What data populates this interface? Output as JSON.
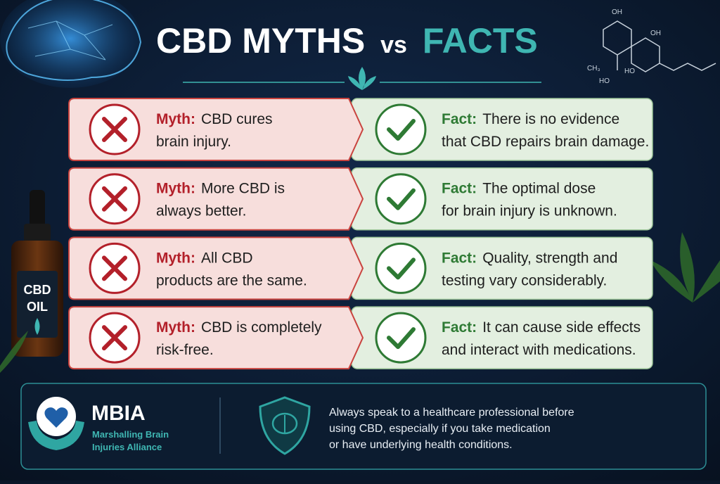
{
  "title": {
    "myths": "CBD MYTHS",
    "vs": "vs",
    "facts": "FACTS"
  },
  "molecule_labels": [
    "OH",
    "OH",
    "CH₃",
    "HO",
    "HO"
  ],
  "bottle": {
    "line1": "CBD",
    "line2": "OIL"
  },
  "rows": [
    {
      "myth_label": "Myth:",
      "myth_lines": [
        "CBD cures",
        "brain injury."
      ],
      "fact_label": "Fact:",
      "fact_lines": [
        "There is no evidence",
        "that CBD repairs brain damage."
      ]
    },
    {
      "myth_label": "Myth:",
      "myth_lines": [
        "More CBD is",
        "always better."
      ],
      "fact_label": "Fact:",
      "fact_lines": [
        "The optimal dose",
        "for brain injury is unknown."
      ]
    },
    {
      "myth_label": "Myth:",
      "myth_lines": [
        "All CBD",
        "products are the same."
      ],
      "fact_label": "Fact:",
      "fact_lines": [
        "Quality, strength and",
        "testing vary considerably."
      ]
    },
    {
      "myth_label": "Myth:",
      "myth_lines": [
        "CBD is completely",
        "risk-free."
      ],
      "fact_label": "Fact:",
      "fact_lines": [
        "It can cause side effects",
        "and interact with medications."
      ]
    }
  ],
  "footer": {
    "org_short": "MBIA",
    "org_name_lines": [
      "Marshalling Brain",
      "Injuries Alliance"
    ],
    "disclaimer_lines": [
      "Always speak to a healthcare professional before",
      "using CBD, especially if you take medication",
      "or have underlying health conditions."
    ]
  }
}
